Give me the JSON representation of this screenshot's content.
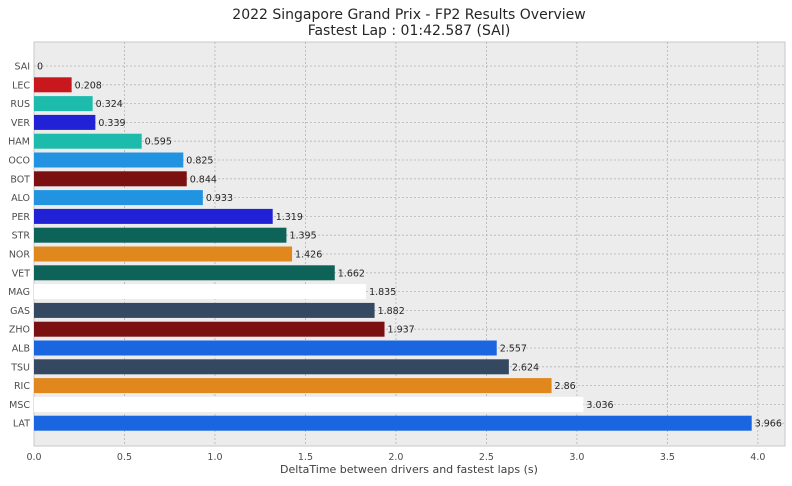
{
  "chart_data": {
    "type": "bar",
    "orientation": "horizontal",
    "title": "2022 Singapore Grand Prix - FP2 Results Overview",
    "subtitle": "Fastest Lap : 01:42.587 (SAI)",
    "xlabel": "DeltaTime between drivers and fastest laps (s)",
    "ylabel": "",
    "xlim": [
      0.0,
      4.15
    ],
    "xticks": [
      "0.0",
      "0.5",
      "1.0",
      "1.5",
      "2.0",
      "2.5",
      "3.0",
      "3.5",
      "4.0"
    ],
    "grid": true,
    "categories": [
      "SAI",
      "LEC",
      "RUS",
      "VER",
      "HAM",
      "OCO",
      "BOT",
      "ALO",
      "PER",
      "STR",
      "NOR",
      "VET",
      "MAG",
      "GAS",
      "ZHO",
      "ALB",
      "TSU",
      "RIC",
      "MSC",
      "LAT"
    ],
    "values": [
      0,
      0.208,
      0.324,
      0.339,
      0.595,
      0.825,
      0.844,
      0.933,
      1.319,
      1.395,
      1.426,
      1.662,
      1.835,
      1.882,
      1.937,
      2.557,
      2.624,
      2.86,
      3.036,
      3.966
    ],
    "value_labels": [
      "0",
      "0.208",
      "0.324",
      "0.339",
      "0.595",
      "0.825",
      "0.844",
      "0.933",
      "1.319",
      "1.395",
      "1.426",
      "1.662",
      "1.835",
      "1.882",
      "1.937",
      "2.557",
      "2.624",
      "2.86",
      "3.036",
      "3.966"
    ],
    "colors": [
      "#ed1c24",
      "#c8181d",
      "#1dbbac",
      "#2121d6",
      "#1dbbac",
      "#2293e0",
      "#7a1010",
      "#2293e0",
      "#2121d6",
      "#0e6358",
      "#e0871d",
      "#0e6358",
      "#ffffff",
      "#344862",
      "#7a1010",
      "#1a66e0",
      "#344862",
      "#e0871d",
      "#ffffff",
      "#1a66e0"
    ],
    "background_color": "#ececec"
  }
}
